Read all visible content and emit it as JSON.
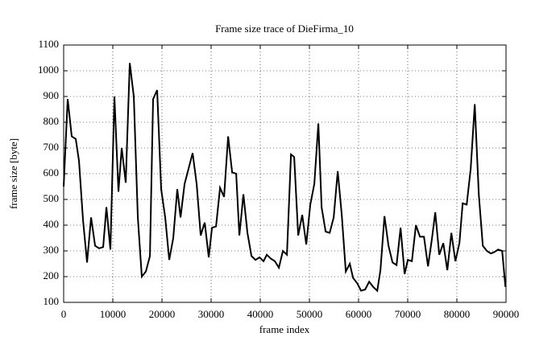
{
  "chart_data": {
    "type": "line",
    "title": "Frame size trace of DieFirma_10",
    "x_label": "frame index",
    "y_label": "frame size [byte]",
    "x": [
      0,
      820,
      1640,
      2460,
      3120,
      3940,
      4760,
      5580,
      6400,
      7220,
      8040,
      8700,
      9510,
      10330,
      11150,
      11810,
      12630,
      13450,
      14270,
      15090,
      15900,
      16730,
      17550,
      18200,
      19020,
      19840,
      20660,
      21480,
      22300,
      23120,
      23780,
      24600,
      25420,
      26240,
      27060,
      27880,
      28700,
      29520,
      30180,
      31000,
      31820,
      32640,
      33460,
      34280,
      35100,
      35750,
      36570,
      37390,
      38210,
      39030,
      39850,
      40670,
      41330,
      42150,
      42970,
      43790,
      44610,
      45430,
      46250,
      46900,
      47720,
      48540,
      49360,
      50180,
      51000,
      51820,
      52480,
      53300,
      54120,
      54940,
      55760,
      56580,
      57400,
      58220,
      58880,
      59700,
      60520,
      61340,
      62160,
      62980,
      63800,
      64450,
      65270,
      66090,
      66910,
      67730,
      68550,
      69370,
      70030,
      70850,
      71670,
      72490,
      73310,
      74130,
      74950,
      75600,
      76420,
      77240,
      78060,
      78880,
      79700,
      80520,
      81180,
      82000,
      82820,
      83640,
      84460,
      85280,
      86100,
      86920,
      87580,
      88400,
      89220,
      89880
    ],
    "series": [
      {
        "name": "frame size",
        "color": "#000000",
        "values": [
          550,
          890,
          745,
          735,
          650,
          420,
          255,
          430,
          320,
          310,
          315,
          470,
          305,
          900,
          530,
          700,
          565,
          1030,
          900,
          430,
          200,
          220,
          280,
          890,
          925,
          540,
          430,
          265,
          350,
          540,
          430,
          560,
          620,
          680,
          560,
          360,
          410,
          275,
          390,
          395,
          545,
          510,
          745,
          605,
          600,
          360,
          520,
          370,
          280,
          265,
          275,
          260,
          285,
          270,
          260,
          235,
          300,
          285,
          675,
          665,
          360,
          440,
          325,
          480,
          560,
          795,
          470,
          375,
          370,
          430,
          610,
          440,
          220,
          250,
          195,
          175,
          145,
          150,
          180,
          160,
          145,
          225,
          435,
          320,
          255,
          245,
          390,
          210,
          265,
          260,
          400,
          355,
          355,
          240,
          350,
          450,
          285,
          330,
          225,
          370,
          260,
          330,
          485,
          480,
          620,
          870,
          520,
          320,
          300,
          290,
          295,
          305,
          300,
          160
        ]
      }
    ],
    "xlim": [
      0,
      90000
    ],
    "ylim": [
      100,
      1100
    ],
    "xticks": [
      0,
      10000,
      20000,
      30000,
      40000,
      50000,
      60000,
      70000,
      80000,
      90000
    ],
    "yticks": [
      100,
      200,
      300,
      400,
      500,
      600,
      700,
      800,
      900,
      1000,
      1100
    ],
    "grid": true
  }
}
